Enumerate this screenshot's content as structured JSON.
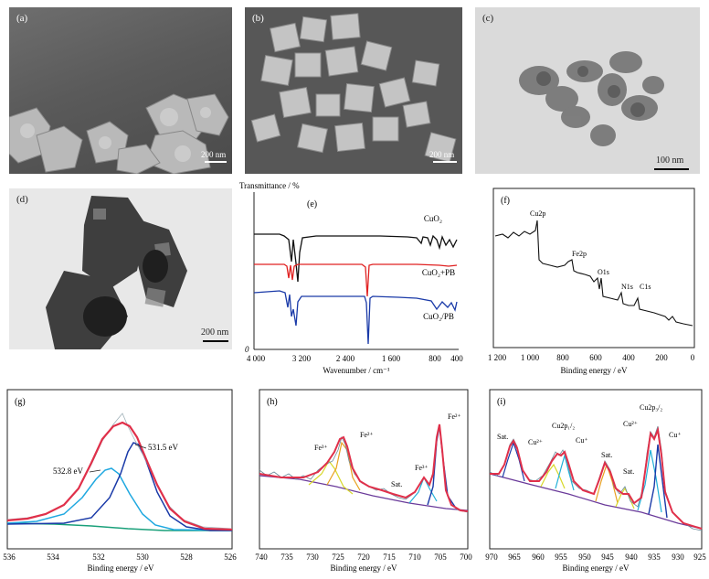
{
  "figure": {
    "panels": [
      {
        "label": "(a)",
        "kind": "SEM",
        "scale": "200 nm"
      },
      {
        "label": "(b)",
        "kind": "SEM",
        "scale": "200 nm"
      },
      {
        "label": "(c)",
        "kind": "TEM",
        "scale": "100 nm"
      },
      {
        "label": "(d)",
        "kind": "TEM",
        "scale": "200 nm"
      }
    ],
    "ftir": {
      "label": "(e)",
      "ylabel": "Transmittance / %",
      "xlabel": "Wavenumber / cm⁻¹",
      "xticks": [
        "4 000",
        "3 200",
        "2 400",
        "1 600",
        "800",
        "400"
      ],
      "y_zero": "0",
      "series": [
        {
          "name": "CuO₂",
          "color": "#111111"
        },
        {
          "name": "CuO₂+PB",
          "color": "#e02020"
        },
        {
          "name": "CuO₂/PB",
          "color": "#1a3aa8"
        }
      ]
    },
    "xps_survey": {
      "label": "(f)",
      "xlabel": "Binding energy / eV",
      "xticks": [
        "1 200",
        "1 000",
        "800",
        "600",
        "400",
        "200",
        "0"
      ],
      "peaks": [
        "Cu2p",
        "Fe2p",
        "O1s",
        "N1s",
        "C1s"
      ]
    },
    "xps_o1s": {
      "label": "(g)",
      "xlabel": "Binding energy / eV",
      "xticks": [
        "536",
        "534",
        "532",
        "530",
        "528",
        "526"
      ],
      "annotations": [
        "531.5 eV",
        "532.8 eV"
      ]
    },
    "xps_fe2p": {
      "label": "(h)",
      "xlabel": "Binding energy / eV",
      "xticks": [
        "740",
        "735",
        "730",
        "725",
        "720",
        "715",
        "710",
        "705",
        "700"
      ],
      "annotations": [
        "Fe³⁺",
        "Fe²⁺",
        "Fe³⁺",
        "Sat.",
        "Fe²⁺"
      ]
    },
    "xps_cu2p": {
      "label": "(i)",
      "xlabel": "Binding energy / eV",
      "xticks": [
        "970",
        "965",
        "960",
        "955",
        "950",
        "945",
        "940",
        "935",
        "930",
        "925"
      ],
      "annotations": [
        "Sat.",
        "Cu²⁺",
        "Cu2p₁/₂",
        "Cu⁺",
        "Sat.",
        "Sat.",
        "Cu²⁺",
        "Cu2p₃/₂",
        "Cu⁺"
      ]
    }
  }
}
